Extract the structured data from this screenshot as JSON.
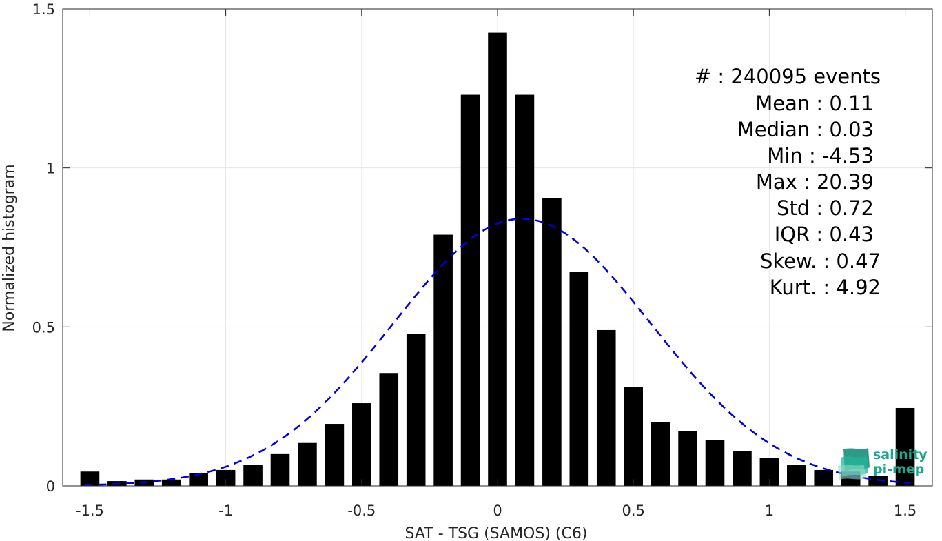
{
  "chart_data": {
    "type": "bar",
    "xlabel": "SAT - TSG (SAMOS) (C6)",
    "ylabel": "Normalized histogram",
    "xlim": [
      -1.6,
      1.6
    ],
    "ylim": [
      0,
      1.5
    ],
    "xticks": [
      "-1.5",
      "-1",
      "-0.5",
      "0",
      "0.5",
      "1",
      "1.5"
    ],
    "yticks": [
      "0",
      "0.5",
      "1",
      "1.5"
    ],
    "grid": true,
    "bar_width": 0.07,
    "bars": {
      "x": [
        -1.5,
        -1.4,
        -1.3,
        -1.2,
        -1.1,
        -1.0,
        -0.9,
        -0.8,
        -0.7,
        -0.6,
        -0.5,
        -0.4,
        -0.3,
        -0.2,
        -0.1,
        0.0,
        0.1,
        0.2,
        0.3,
        0.4,
        0.5,
        0.6,
        0.7,
        0.8,
        0.9,
        1.0,
        1.1,
        1.2,
        1.3,
        1.4,
        1.5
      ],
      "values": [
        0.045,
        0.015,
        0.02,
        0.02,
        0.04,
        0.05,
        0.065,
        0.1,
        0.135,
        0.195,
        0.26,
        0.355,
        0.478,
        0.79,
        1.23,
        1.425,
        1.23,
        0.905,
        0.672,
        0.49,
        0.312,
        0.2,
        0.172,
        0.145,
        0.11,
        0.088,
        0.065,
        0.05,
        0.045,
        0.032,
        0.245
      ],
      "color": "#000000"
    },
    "fit_curve": {
      "style": "dashed",
      "color": "#0000e6",
      "mean": 0.09,
      "std": 0.475,
      "peak": 0.84,
      "x_range": [
        -1.52,
        1.52
      ]
    }
  },
  "stats": {
    "count": "#  : 240095 events",
    "mean": "Mean : 0.11",
    "median": "Median : 0.03",
    "min": "Min : -4.53",
    "max": "Max : 20.39",
    "std": "Std : 0.72",
    "iqr": "IQR : 0.43",
    "skew": "Skew. : 0.47",
    "kurt": "Kurt. : 4.92"
  },
  "logo": {
    "line1": "salinity",
    "line2": "pi-mep",
    "color": "#1aa88f"
  }
}
